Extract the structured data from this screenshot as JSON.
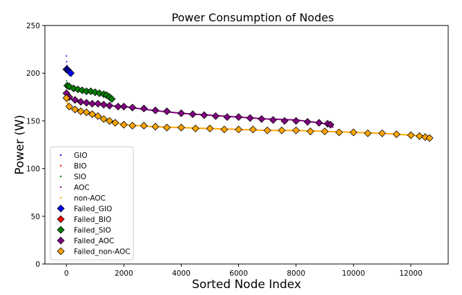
{
  "chart_data": {
    "type": "scatter",
    "title": "Power Consumption of Nodes",
    "xlabel": "Sorted Node Index",
    "ylabel": "Power (W)",
    "xlim": [
      -750,
      13300
    ],
    "ylim": [
      0,
      250
    ],
    "xticks": [
      0,
      2000,
      4000,
      6000,
      8000,
      10000,
      12000
    ],
    "yticks": [
      0,
      50,
      100,
      150,
      200,
      250
    ],
    "legend_position": "lower-left",
    "grid": false,
    "series": [
      {
        "name": "GIO",
        "kind": "dots",
        "color": "#0000ff",
        "x": [
          0,
          10,
          20,
          40,
          60,
          80,
          100,
          130,
          160
        ],
        "y": [
          218,
          212,
          208,
          206,
          205,
          204,
          203,
          202,
          201
        ]
      },
      {
        "name": "BIO",
        "kind": "dots",
        "color": "#ff0000",
        "x": [
          5,
          15,
          30
        ],
        "y": [
          205,
          203,
          202
        ]
      },
      {
        "name": "SIO",
        "kind": "dots",
        "color": "#008000",
        "x": [
          0,
          40,
          100,
          200,
          400,
          700,
          1000,
          1300,
          1500,
          1600
        ],
        "y": [
          192,
          188,
          186,
          184,
          182,
          180,
          178,
          176,
          174,
          172
        ]
      },
      {
        "name": "AOC",
        "kind": "line",
        "color": "#800080",
        "x": [
          0,
          100,
          300,
          500,
          800,
          1000,
          1500,
          2000,
          3000,
          4000,
          5000,
          6000,
          7000,
          8000,
          8800,
          9200,
          9300
        ],
        "y": [
          178,
          174,
          171,
          170,
          168,
          168,
          166,
          165,
          161,
          158,
          156,
          154,
          152,
          151,
          148,
          146,
          143
        ]
      },
      {
        "name": "non-AOC",
        "kind": "line",
        "color": "#ffa500",
        "x": [
          0,
          50,
          150,
          400,
          700,
          1000,
          1300,
          1600,
          2000,
          3000,
          4000,
          5000,
          6000,
          7000,
          8000,
          9000,
          10000,
          11000,
          12000,
          12600,
          12700
        ],
        "y": [
          175,
          167,
          163,
          161,
          159,
          156,
          152,
          149,
          146,
          144,
          143,
          142,
          141,
          140,
          140,
          139,
          138,
          137,
          135,
          134,
          132
        ]
      },
      {
        "name": "Failed_GIO",
        "kind": "failed",
        "color": "#0000ff",
        "x": [
          0,
          30,
          60,
          90,
          120,
          150
        ],
        "y": [
          204,
          204,
          203,
          202,
          201,
          200
        ]
      },
      {
        "name": "Failed_BIO",
        "kind": "failed",
        "color": "#ff0000",
        "x": [],
        "y": []
      },
      {
        "name": "Failed_SIO",
        "kind": "failed",
        "color": "#008000",
        "x": [
          30,
          100,
          250,
          400,
          550,
          700,
          850,
          1000,
          1150,
          1300,
          1400,
          1500,
          1580
        ],
        "y": [
          187,
          186,
          184,
          183,
          182,
          181,
          181,
          180,
          179,
          178,
          177,
          175,
          173
        ]
      },
      {
        "name": "Failed_AOC",
        "kind": "failed",
        "color": "#800080",
        "x": [
          0,
          100,
          300,
          500,
          700,
          900,
          1100,
          1300,
          1500,
          1800,
          2000,
          2300,
          2700,
          3100,
          3500,
          4000,
          4400,
          4800,
          5200,
          5600,
          6000,
          6400,
          6800,
          7200,
          7600,
          8000,
          8400,
          8800,
          9100,
          9200
        ],
        "y": [
          179,
          175,
          172,
          170,
          169,
          168,
          168,
          167,
          166,
          165,
          165,
          164,
          163,
          161,
          160,
          158,
          157,
          156,
          155,
          154,
          154,
          153,
          152,
          151,
          150,
          150,
          149,
          148,
          147,
          146
        ]
      },
      {
        "name": "Failed_non-AOC",
        "kind": "failed",
        "color": "#ffa500",
        "x": [
          0,
          100,
          300,
          500,
          700,
          900,
          1100,
          1300,
          1500,
          1700,
          2000,
          2300,
          2700,
          3100,
          3500,
          4000,
          4500,
          5000,
          5500,
          6000,
          6500,
          7000,
          7500,
          8000,
          8500,
          9000,
          9500,
          10000,
          10500,
          11000,
          11500,
          12000,
          12300,
          12500,
          12650
        ],
        "y": [
          174,
          165,
          162,
          160,
          159,
          157,
          155,
          152,
          150,
          148,
          146,
          145,
          145,
          144,
          143,
          143,
          142,
          142,
          141,
          141,
          141,
          140,
          140,
          140,
          139,
          139,
          138,
          138,
          137,
          137,
          136,
          135,
          134,
          133,
          132
        ]
      }
    ]
  }
}
